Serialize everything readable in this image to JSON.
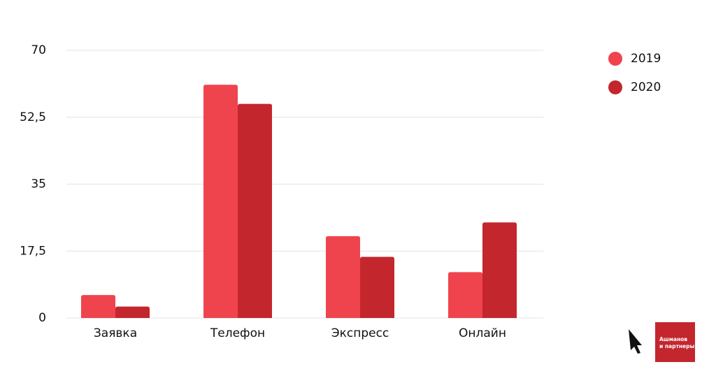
{
  "chart_data": {
    "type": "bar",
    "categories": [
      "Заявка",
      "Телефон",
      "Экспресс",
      "Онлайн"
    ],
    "series": [
      {
        "name": "2019",
        "color": "#ef444e",
        "values": [
          6,
          61,
          21.4,
          12
        ]
      },
      {
        "name": "2020",
        "color": "#c4262e",
        "values": [
          3,
          56,
          16,
          25
        ]
      }
    ],
    "ylim": [
      0,
      70
    ],
    "yticks": [
      0,
      {
        "value": 17.5,
        "label": "17,5"
      },
      35,
      {
        "value": 52.5,
        "label": "52,5"
      },
      70
    ],
    "grid": true,
    "legend": "top-right"
  },
  "brand": {
    "line1": "Ашманов",
    "line2": "и партнеры"
  }
}
